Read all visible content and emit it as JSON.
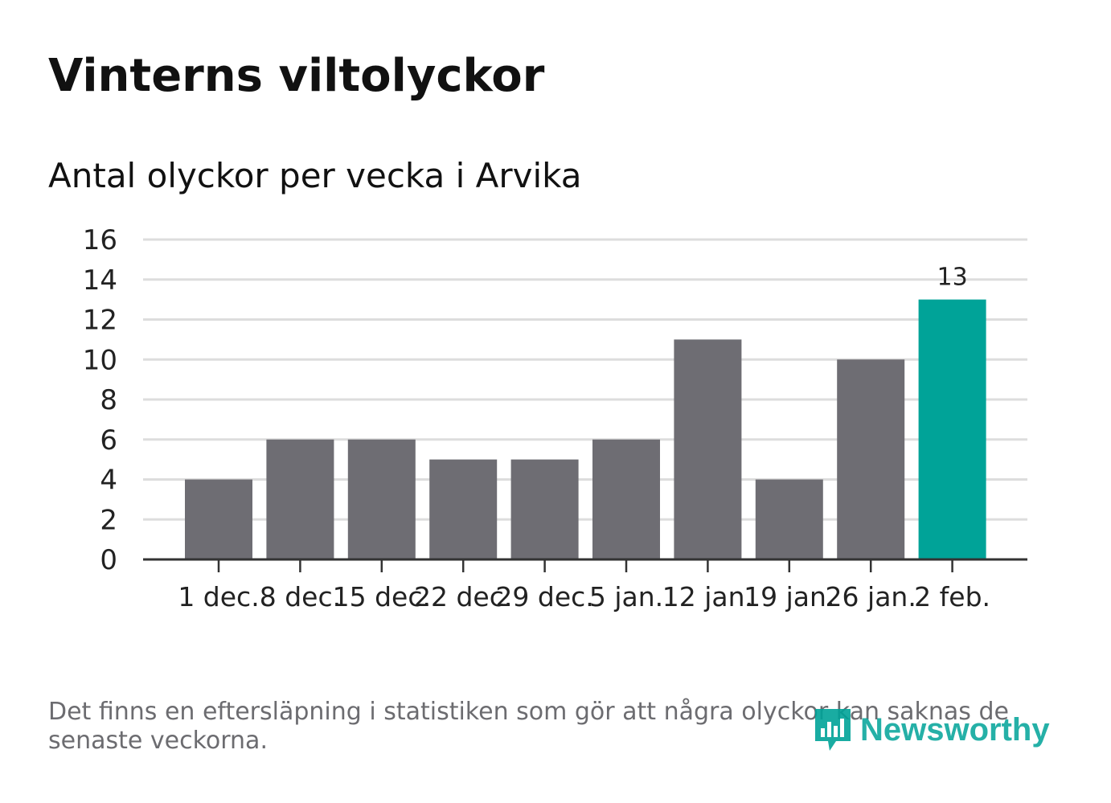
{
  "title": "Vinterns viltolyckor",
  "subtitle": "Antal olyckor per vecka i Arvika",
  "footnote": "Det finns en eftersläpning i statistiken som gör att några olyckor kan saknas de senaste veckorna.",
  "brand": {
    "name": "Newsworthy"
  },
  "colors": {
    "bar": "#6e6d73",
    "highlight": "#00a398",
    "grid": "#dddddd",
    "axis": "#333333",
    "text": "#222222"
  },
  "chart_data": {
    "type": "bar",
    "title": "Antal olyckor per vecka i Arvika",
    "categories": [
      "1 dec.",
      "8 dec.",
      "15 dec.",
      "22 dec.",
      "29 dec.",
      "5 jan.",
      "12 jan.",
      "19 jan.",
      "26 jan.",
      "2 feb."
    ],
    "values": [
      4,
      6,
      6,
      5,
      5,
      6,
      11,
      4,
      10,
      13
    ],
    "highlight_index": 9,
    "data_labels": [
      {
        "index": 9,
        "text": "13"
      }
    ],
    "yticks": [
      "0",
      "2",
      "4",
      "6",
      "8",
      "10",
      "12",
      "14",
      "16"
    ],
    "ylim": [
      0,
      16
    ],
    "xlabel": "",
    "ylabel": "",
    "grid": true
  }
}
